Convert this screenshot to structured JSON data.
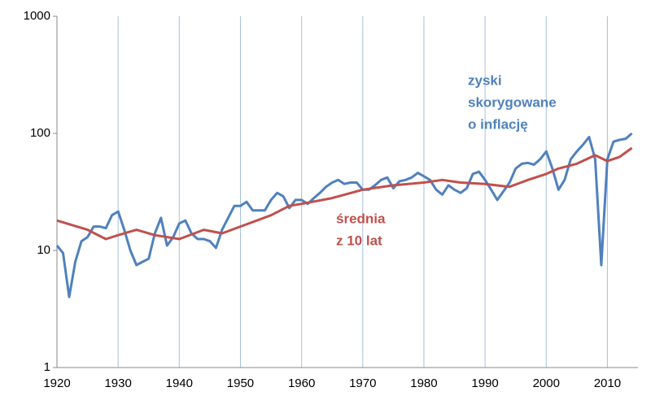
{
  "chart_data": {
    "type": "line",
    "log_y": true,
    "grid_x": true,
    "xlim": [
      1920,
      2015
    ],
    "xticks": [
      1920,
      1930,
      1940,
      1950,
      1960,
      1970,
      1980,
      1990,
      2000,
      2010
    ],
    "ylim": [
      1,
      1000
    ],
    "yticks": [
      1,
      10,
      100,
      1000
    ],
    "series": [
      {
        "color": "#4f81bd",
        "label": [
          "zyski",
          "skorygowane",
          "o inflację"
        ],
        "x": [
          1920,
          1921,
          1922,
          1923,
          1924,
          1925,
          1926,
          1927,
          1928,
          1929,
          1930,
          1931,
          1932,
          1933,
          1934,
          1935,
          1936,
          1937,
          1938,
          1939,
          1940,
          1941,
          1942,
          1943,
          1944,
          1945,
          1946,
          1947,
          1948,
          1949,
          1950,
          1951,
          1952,
          1953,
          1954,
          1955,
          1956,
          1957,
          1958,
          1959,
          1960,
          1961,
          1962,
          1963,
          1964,
          1965,
          1966,
          1967,
          1968,
          1969,
          1970,
          1971,
          1972,
          1973,
          1974,
          1975,
          1976,
          1977,
          1978,
          1979,
          1980,
          1981,
          1982,
          1983,
          1984,
          1985,
          1986,
          1987,
          1988,
          1989,
          1990,
          1991,
          1992,
          1993,
          1994,
          1995,
          1996,
          1997,
          1998,
          1999,
          2000,
          2001,
          2002,
          2003,
          2004,
          2005,
          2006,
          2007,
          2008,
          2009,
          2010,
          2011,
          2012,
          2013,
          2014
        ],
        "values": [
          11,
          9.5,
          4,
          8,
          12,
          13,
          16,
          16,
          15.5,
          20,
          21.5,
          15,
          10,
          7.5,
          8,
          8.5,
          14,
          19,
          11,
          13,
          17,
          18,
          14,
          12.5,
          12.5,
          12,
          10.5,
          15,
          19,
          24,
          24,
          26,
          22,
          22,
          22,
          27,
          31,
          29,
          23,
          27,
          27,
          25,
          28,
          31,
          35,
          38,
          40,
          37,
          38,
          38,
          33,
          33,
          36,
          40,
          42,
          34,
          39,
          40,
          42,
          46,
          43,
          40,
          33,
          30,
          36,
          33,
          31,
          34,
          45,
          47,
          40,
          33,
          27,
          32,
          38,
          50,
          55,
          56,
          54,
          60,
          70,
          50,
          33,
          40,
          60,
          70,
          80,
          93,
          60,
          7.5,
          60,
          85,
          88,
          90,
          100
        ]
      },
      {
        "color": "#c0504d",
        "label": [
          "średnia",
          "z 10 lat"
        ],
        "x": [
          1920,
          1925,
          1928,
          1930,
          1933,
          1936,
          1940,
          1944,
          1947,
          1950,
          1955,
          1958,
          1960,
          1965,
          1970,
          1975,
          1980,
          1983,
          1986,
          1990,
          1994,
          1997,
          2000,
          2002,
          2005,
          2008,
          2010,
          2012,
          2014
        ],
        "values": [
          18,
          15,
          12.5,
          13.5,
          15,
          13.5,
          12.5,
          15,
          14,
          16,
          20,
          24,
          25,
          28,
          33,
          36,
          38,
          40,
          38,
          37,
          35,
          40,
          45,
          50,
          55,
          65,
          58,
          63,
          75
        ]
      }
    ]
  }
}
